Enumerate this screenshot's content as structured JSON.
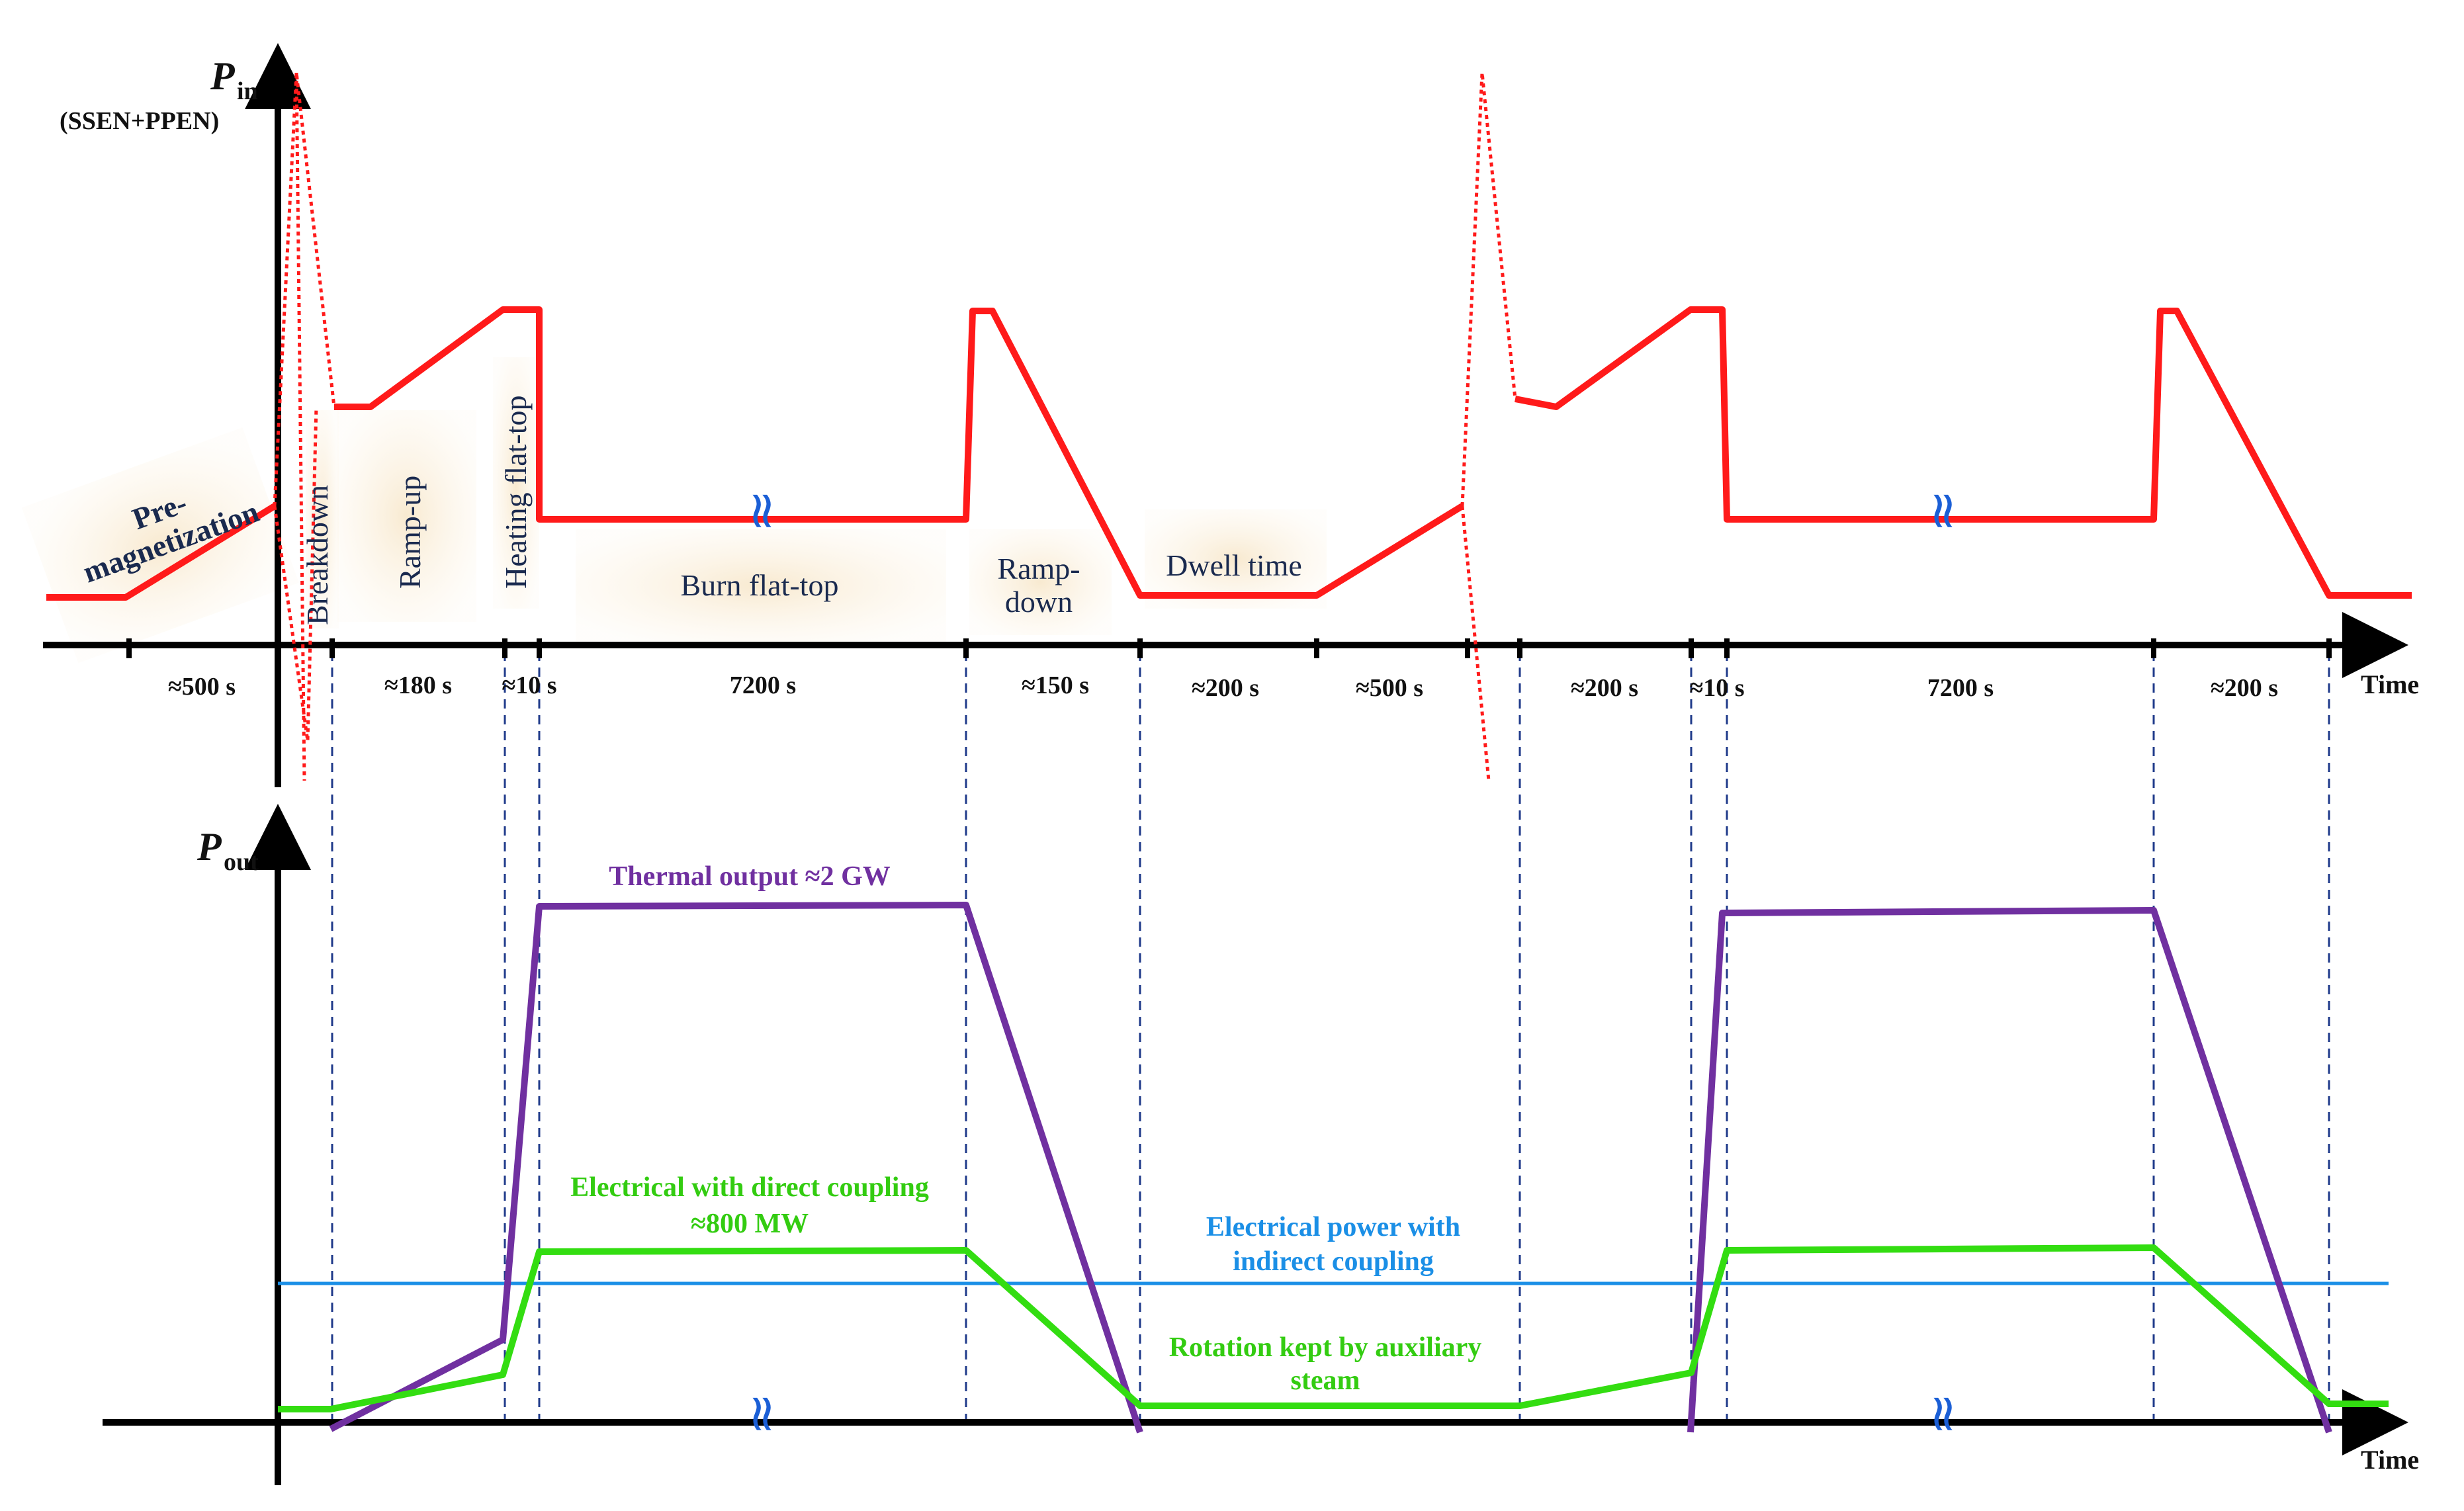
{
  "top_axis": {
    "ylabel_main": "P",
    "ylabel_sub": "in",
    "ylabel_note": "(SSEN+PPEN)",
    "xlabel": "Time"
  },
  "bottom_axis": {
    "ylabel_main": "P",
    "ylabel_sub": "out",
    "xlabel": "Time"
  },
  "phases": {
    "premag_1": "Pre-",
    "premag_2": "magnetization",
    "breakdown": "Breakdown",
    "rampup": "Ramp-up",
    "heating": "Heating flat-top",
    "burn": "Burn flat-top",
    "rampdown_1": "Ramp-",
    "rampdown_2": "down",
    "dwell": "Dwell time"
  },
  "durations": {
    "d1": "≈500 s",
    "d2": "≈180 s",
    "d3": "≈10 s",
    "d4": "7200 s",
    "d5": "≈150 s",
    "d6": "≈200 s",
    "d7": "≈500 s",
    "d8": "≈200 s",
    "d9": "≈10 s",
    "d10": "7200 s",
    "d11": "≈200 s"
  },
  "break_symbol": "≈",
  "series_labels": {
    "thermal": "Thermal output ≈2 GW",
    "direct_1": "Electrical with direct coupling",
    "direct_2": "≈800 MW",
    "indirect_1": "Electrical power with",
    "indirect_2": "indirect coupling",
    "aux_1": "Rotation kept by auxiliary",
    "aux_2": "steam"
  },
  "colors": {
    "pin": "#ff1a1a",
    "thermal": "#7030a0",
    "direct": "#33dd11",
    "indirect": "#1b8fe6",
    "guide": "#1f3a8a",
    "phase_text": "#1a2a4f",
    "phase_bg": "#fbf1e0"
  }
}
